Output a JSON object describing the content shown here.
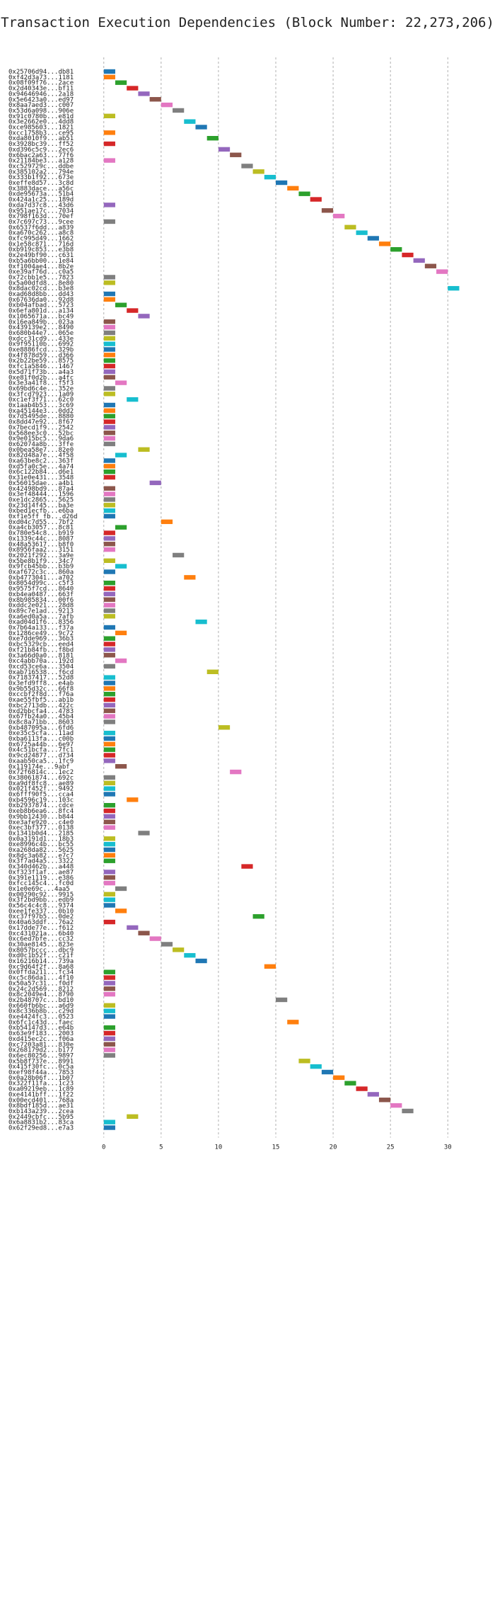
{
  "chart_data": {
    "type": "gantt",
    "title": "Transaction Execution Dependencies (Block Number: 22,273,206)",
    "xlabel": "",
    "ylabel": "",
    "xlim": [
      -3.5,
      33.5
    ],
    "xticks": [
      "0",
      "5",
      "10",
      "15",
      "20",
      "25",
      "30"
    ],
    "xtick_values": [
      0,
      5,
      10,
      15,
      20,
      25,
      30
    ],
    "grid": true,
    "palette": [
      "#1f77b4",
      "#ff7f0e",
      "#2ca02c",
      "#d62728",
      "#9467bd",
      "#8c564b",
      "#e377c2",
      "#7f7f7f",
      "#bcbd22",
      "#17becf"
    ],
    "transactions": [
      {
        "label": "0x25706d94...db81",
        "start": 0,
        "color": 0
      },
      {
        "label": "0xf42d3a73...1181",
        "start": 0,
        "color": 1
      },
      {
        "label": "0x08f09f76...2ace",
        "start": 1,
        "color": 2
      },
      {
        "label": "0x2d40343e...bf11",
        "start": 2,
        "color": 3
      },
      {
        "label": "0x94646946...2a18",
        "start": 3,
        "color": 4
      },
      {
        "label": "0x5e6423a0...ed97",
        "start": 4,
        "color": 5
      },
      {
        "label": "0x8aa7aed3...c007",
        "start": 5,
        "color": 6
      },
      {
        "label": "0x53d6a098...906e",
        "start": 6,
        "color": 7
      },
      {
        "label": "0x91c0780b...e81d",
        "start": 0,
        "color": 8
      },
      {
        "label": "0x3e2662e0...4dd8",
        "start": 7,
        "color": 9
      },
      {
        "label": "0xce985603...1821",
        "start": 8,
        "color": 0
      },
      {
        "label": "0xcc1758b3...ce95",
        "start": 0,
        "color": 1
      },
      {
        "label": "0xda8010f9...ab51",
        "start": 9,
        "color": 2
      },
      {
        "label": "0x3928bc39...ff52",
        "start": 0,
        "color": 3
      },
      {
        "label": "0xd396c5c9...2ec6",
        "start": 10,
        "color": 4
      },
      {
        "label": "0x6bac2a63...77f6",
        "start": 11,
        "color": 5
      },
      {
        "label": "0x21184be3...a128",
        "start": 0,
        "color": 6
      },
      {
        "label": "0xc529729c...ddbe",
        "start": 12,
        "color": 7
      },
      {
        "label": "0x385102a2...794e",
        "start": 13,
        "color": 8
      },
      {
        "label": "0x333b1f92...673e",
        "start": 14,
        "color": 9
      },
      {
        "label": "0xeffe8d57...3c8d",
        "start": 15,
        "color": 0
      },
      {
        "label": "0x3883dace...a56c",
        "start": 16,
        "color": 1
      },
      {
        "label": "0xde95673a...51b4",
        "start": 17,
        "color": 2
      },
      {
        "label": "0x424a1c25...189d",
        "start": 18,
        "color": 3
      },
      {
        "label": "0xda7d37c8...43d6",
        "start": 0,
        "color": 4
      },
      {
        "label": "0x951ae17c...7034",
        "start": 19,
        "color": 5
      },
      {
        "label": "0x798f163d...70ef",
        "start": 20,
        "color": 6
      },
      {
        "label": "0x7c697c73...9cee",
        "start": 0,
        "color": 7
      },
      {
        "label": "0x6537f6dd...a839",
        "start": 21,
        "color": 8
      },
      {
        "label": "0xa670c262...a8c8",
        "start": 22,
        "color": 9
      },
      {
        "label": "0xfc995d49...1662",
        "start": 23,
        "color": 0
      },
      {
        "label": "0x1e58c871...716d",
        "start": 24,
        "color": 1
      },
      {
        "label": "0xb919c853...e3b8",
        "start": 25,
        "color": 2
      },
      {
        "label": "0x2e49bf90...c631",
        "start": 26,
        "color": 3
      },
      {
        "label": "0xb5a6bb00...1e84",
        "start": 27,
        "color": 4
      },
      {
        "label": "0xf1004ae4...8b2e",
        "start": 28,
        "color": 5
      },
      {
        "label": "0xe39af76d...c0a5",
        "start": 29,
        "color": 6
      },
      {
        "label": "0x72cbb1e5...7823",
        "start": 0,
        "color": 7
      },
      {
        "label": "0x5a00dfd8...8e80",
        "start": 0,
        "color": 8
      },
      {
        "label": "0x8dac02cd...b3e8",
        "start": 30,
        "color": 9
      },
      {
        "label": "0xad68d8bb...dd43",
        "start": 0,
        "color": 0
      },
      {
        "label": "0x67636da0...92d8",
        "start": 0,
        "color": 1
      },
      {
        "label": "0xb04afbad...5723",
        "start": 1,
        "color": 2
      },
      {
        "label": "0x6efa801d...a134",
        "start": 2,
        "color": 3
      },
      {
        "label": "0x1065671a...bc49",
        "start": 3,
        "color": 4
      },
      {
        "label": "0x16ea849b...023a",
        "start": 0,
        "color": 5
      },
      {
        "label": "0x439139e2...8490",
        "start": 0,
        "color": 6
      },
      {
        "label": "0x680b44e7...065e",
        "start": 0,
        "color": 7
      },
      {
        "label": "0xdcc31cd9...433e",
        "start": 0,
        "color": 8
      },
      {
        "label": "0x9f95110b...6992",
        "start": 0,
        "color": 9
      },
      {
        "label": "0xe8886fcd...329b",
        "start": 0,
        "color": 0
      },
      {
        "label": "0x4f878d59...d366",
        "start": 0,
        "color": 1
      },
      {
        "label": "0x2b22be59...8575",
        "start": 0,
        "color": 2
      },
      {
        "label": "0xfc1a5846...1467",
        "start": 0,
        "color": 3
      },
      {
        "label": "0x5d71f73b...a4a3",
        "start": 0,
        "color": 4
      },
      {
        "label": "0xe81f0d2b...a4fc",
        "start": 0,
        "color": 5
      },
      {
        "label": "0x3e3a41f8...f5f3",
        "start": 1,
        "color": 6
      },
      {
        "label": "0x69bd6c4e...352e",
        "start": 0,
        "color": 7
      },
      {
        "label": "0x3fcd7923...1a09",
        "start": 0,
        "color": 8
      },
      {
        "label": "0xc1ef3f71...62c0",
        "start": 2,
        "color": 9
      },
      {
        "label": "0x1aab4b53...3c69",
        "start": 0,
        "color": 0
      },
      {
        "label": "0xa45144e3...0dd2",
        "start": 0,
        "color": 1
      },
      {
        "label": "0x7d5495de...8880",
        "start": 0,
        "color": 2
      },
      {
        "label": "0x8dd47e92...8f67",
        "start": 0,
        "color": 3
      },
      {
        "label": "0x7becd1f9...2542",
        "start": 0,
        "color": 4
      },
      {
        "label": "0x568ee3c0...52bc",
        "start": 0,
        "color": 5
      },
      {
        "label": "0x9e015bc5...9da6",
        "start": 0,
        "color": 6
      },
      {
        "label": "0x62074a8b...3ffe",
        "start": 0,
        "color": 7
      },
      {
        "label": "0x0bea58e7...82e0",
        "start": 3,
        "color": 8
      },
      {
        "label": "0x82d48a7e...4f58",
        "start": 1,
        "color": 9
      },
      {
        "label": "0xa63be8c2...363f",
        "start": 0,
        "color": 0
      },
      {
        "label": "0xd5fa0c5e...4a74",
        "start": 0,
        "color": 1
      },
      {
        "label": "0x6c122b84...d6e1",
        "start": 0,
        "color": 2
      },
      {
        "label": "0x31e0e431...3548",
        "start": 0,
        "color": 3
      },
      {
        "label": "0x56015dae...a4b1",
        "start": 4,
        "color": 4
      },
      {
        "label": "0x42498bd9...87a4",
        "start": 0,
        "color": 5
      },
      {
        "label": "0x3ef48444...1596",
        "start": 0,
        "color": 6
      },
      {
        "label": "0xe1dc2865...5625",
        "start": 0,
        "color": 7
      },
      {
        "label": "0x23d14f45...ba3e",
        "start": 0,
        "color": 8
      },
      {
        "label": "0xbed1ecfb...e6ba",
        "start": 0,
        "color": 9
      },
      {
        "label": "0xf1e5ff fb...d26d",
        "start": 0,
        "color": 0
      },
      {
        "label": "0xd04c7d55...7bf2",
        "start": 5,
        "color": 1
      },
      {
        "label": "0xa4cb3057...8c81",
        "start": 1,
        "color": 2
      },
      {
        "label": "0x780e54c8...b919",
        "start": 0,
        "color": 3
      },
      {
        "label": "0x1339c44c...8087",
        "start": 0,
        "color": 4
      },
      {
        "label": "0x48a53617...b8f0",
        "start": 0,
        "color": 5
      },
      {
        "label": "0x8956faa2...3151",
        "start": 0,
        "color": 6
      },
      {
        "label": "0x2021f292...3a9e",
        "start": 6,
        "color": 7
      },
      {
        "label": "0x5be8b1f9...34c7",
        "start": 0,
        "color": 8
      },
      {
        "label": "0x9fcb45bb...b3b9",
        "start": 1,
        "color": 9
      },
      {
        "label": "0xaf672c3c...860a",
        "start": 0,
        "color": 0
      },
      {
        "label": "0xb4773041...a702",
        "start": 7,
        "color": 1
      },
      {
        "label": "0x8054d99c...c5f3",
        "start": 0,
        "color": 2
      },
      {
        "label": "0x9575f7cd...8640",
        "start": 0,
        "color": 3
      },
      {
        "label": "0xb4ea0487...663f",
        "start": 0,
        "color": 4
      },
      {
        "label": "0x8b985834...00f6",
        "start": 0,
        "color": 5
      },
      {
        "label": "0xddc2e021...28d8",
        "start": 0,
        "color": 6
      },
      {
        "label": "0x89c7e1ad...9213",
        "start": 0,
        "color": 7
      },
      {
        "label": "0xa6ed0a5a...7afb",
        "start": 0,
        "color": 8
      },
      {
        "label": "0xad04d1f6...8356",
        "start": 8,
        "color": 9
      },
      {
        "label": "0x7b64a133...f37a",
        "start": 0,
        "color": 0
      },
      {
        "label": "0x1286ce49...9c72",
        "start": 1,
        "color": 1
      },
      {
        "label": "0xe7dde969...36b3",
        "start": 0,
        "color": 2
      },
      {
        "label": "0xbc5329cb...eed4",
        "start": 0,
        "color": 3
      },
      {
        "label": "0xf21b84fb...f8bd",
        "start": 0,
        "color": 4
      },
      {
        "label": "0x3a66d0a0...8181",
        "start": 0,
        "color": 5
      },
      {
        "label": "0xc4abb70a...192d",
        "start": 1,
        "color": 6
      },
      {
        "label": "0xcd53ce6a...3504",
        "start": 0,
        "color": 7
      },
      {
        "label": "0xab716538...f6cd",
        "start": 9,
        "color": 8
      },
      {
        "label": "0x71837417...52d8",
        "start": 0,
        "color": 9
      },
      {
        "label": "0x3efd9ff8...e4ab",
        "start": 0,
        "color": 0
      },
      {
        "label": "0x9b55d32c...66f8",
        "start": 0,
        "color": 1
      },
      {
        "label": "0xccbf2f8d...f76a",
        "start": 0,
        "color": 2
      },
      {
        "label": "0xae55fbf5...ab1b",
        "start": 0,
        "color": 3
      },
      {
        "label": "0xbc2713db...422c",
        "start": 0,
        "color": 4
      },
      {
        "label": "0xd2bbcfa4...4783",
        "start": 0,
        "color": 5
      },
      {
        "label": "0x67fb24a0...45b4",
        "start": 0,
        "color": 6
      },
      {
        "label": "0x8c8a71bb...8603",
        "start": 0,
        "color": 7
      },
      {
        "label": "0xb487095a...6fd6",
        "start": 10,
        "color": 8
      },
      {
        "label": "0xe35c5cfa...11ad",
        "start": 0,
        "color": 9
      },
      {
        "label": "0xba6113fa...c00b",
        "start": 0,
        "color": 0
      },
      {
        "label": "0x6725a44b...6e97",
        "start": 0,
        "color": 1
      },
      {
        "label": "0x4c51bcfa...7fc1",
        "start": 0,
        "color": 2
      },
      {
        "label": "0x9cd24877...d734",
        "start": 0,
        "color": 3
      },
      {
        "label": "0xaab50ca5...1fc9",
        "start": 0,
        "color": 4
      },
      {
        "label": "0x119174e...9abf",
        "start": 1,
        "color": 5
      },
      {
        "label": "0x72f6814c...1ec2",
        "start": 11,
        "color": 6
      },
      {
        "label": "0x38061874...692c",
        "start": 0,
        "color": 7
      },
      {
        "label": "0xa9df8fc8...ae89",
        "start": 0,
        "color": 8
      },
      {
        "label": "0x021f452f...9492",
        "start": 0,
        "color": 9
      },
      {
        "label": "0x6fff90f5...cca4",
        "start": 0,
        "color": 0
      },
      {
        "label": "0xb4596c19...103c",
        "start": 2,
        "color": 1
      },
      {
        "label": "0xb2937874...cdce",
        "start": 0,
        "color": 2
      },
      {
        "label": "0xeb8b6ea6...8fc4",
        "start": 0,
        "color": 3
      },
      {
        "label": "0x9bb12430...b844",
        "start": 0,
        "color": 4
      },
      {
        "label": "0xe3afe920...c4e0",
        "start": 0,
        "color": 5
      },
      {
        "label": "0xec3bf377...0138",
        "start": 0,
        "color": 6
      },
      {
        "label": "0x1341b0d4...2185",
        "start": 3,
        "color": 7
      },
      {
        "label": "0x0a3191d1...18b3",
        "start": 0,
        "color": 8
      },
      {
        "label": "0xe8996c4b...bc55",
        "start": 0,
        "color": 9
      },
      {
        "label": "0xa268da82...5625",
        "start": 0,
        "color": 0
      },
      {
        "label": "0x8dc3a682...e7c7",
        "start": 0,
        "color": 1
      },
      {
        "label": "0x3f7ad4a5...3322",
        "start": 0,
        "color": 2
      },
      {
        "label": "0x340d462b...a448",
        "start": 12,
        "color": 3
      },
      {
        "label": "0xf323f1af...ae87",
        "start": 0,
        "color": 4
      },
      {
        "label": "0x391e1119...e386",
        "start": 0,
        "color": 5
      },
      {
        "label": "0xfcc145c4...fc0d",
        "start": 0,
        "color": 6
      },
      {
        "label": "0x1e0e69c...4aa5",
        "start": 1,
        "color": 7
      },
      {
        "label": "0x00290c92...9915",
        "start": 0,
        "color": 8
      },
      {
        "label": "0x3f2bd9bb...edb9",
        "start": 0,
        "color": 9
      },
      {
        "label": "0x56c4c4c8...9374",
        "start": 0,
        "color": 0
      },
      {
        "label": "0xee1fe337...0b10",
        "start": 1,
        "color": 1
      },
      {
        "label": "0xc37f97b5...0de2",
        "start": 13,
        "color": 2
      },
      {
        "label": "0x40a63ddf...76a2",
        "start": 0,
        "color": 3
      },
      {
        "label": "0x17dde77e...f612",
        "start": 2,
        "color": 4
      },
      {
        "label": "0xc431021a...6b40",
        "start": 3,
        "color": 5
      },
      {
        "label": "0xc6ed7bfe...cc32",
        "start": 4,
        "color": 6
      },
      {
        "label": "0x30ae8145...823e",
        "start": 5,
        "color": 7
      },
      {
        "label": "0x8057bccc...dbc9",
        "start": 6,
        "color": 8
      },
      {
        "label": "0xd0c1b52f...c21f",
        "start": 7,
        "color": 9
      },
      {
        "label": "0x16216b14...739a",
        "start": 8,
        "color": 0
      },
      {
        "label": "0xc9d64f2f...8a68",
        "start": 14,
        "color": 1
      },
      {
        "label": "0x0ffda211...fc34",
        "start": 0,
        "color": 2
      },
      {
        "label": "0xc5c86da1...4f10",
        "start": 0,
        "color": 3
      },
      {
        "label": "0x50a57c31...f0df",
        "start": 0,
        "color": 4
      },
      {
        "label": "0x24c2d569...8212",
        "start": 0,
        "color": 5
      },
      {
        "label": "0x8c2049e4...8790",
        "start": 0,
        "color": 6
      },
      {
        "label": "0x2b48707c...bd10",
        "start": 15,
        "color": 7
      },
      {
        "label": "0x660fb6bc...a6d9",
        "start": 0,
        "color": 8
      },
      {
        "label": "0x8c336b8b...c29d",
        "start": 0,
        "color": 9
      },
      {
        "label": "0xe4424fc3...0523",
        "start": 0,
        "color": 0
      },
      {
        "label": "0x6fc1c43d...faec",
        "start": 16,
        "color": 1
      },
      {
        "label": "0xb54147d3...e64b",
        "start": 0,
        "color": 2
      },
      {
        "label": "0x63e9f183...2003",
        "start": 0,
        "color": 3
      },
      {
        "label": "0xd415ec2c...f06a",
        "start": 0,
        "color": 4
      },
      {
        "label": "0xc7203a81...830e",
        "start": 0,
        "color": 5
      },
      {
        "label": "0x268179d2...b177",
        "start": 0,
        "color": 6
      },
      {
        "label": "0x6ec80256...9897",
        "start": 0,
        "color": 7
      },
      {
        "label": "0x5b8f737e...8991",
        "start": 17,
        "color": 8
      },
      {
        "label": "0x415f30fc...0c5a",
        "start": 18,
        "color": 9
      },
      {
        "label": "0xef98f44a...7853",
        "start": 19,
        "color": 0
      },
      {
        "label": "0x0a28b06f...1b07",
        "start": 20,
        "color": 1
      },
      {
        "label": "0x322f11fa...1c23",
        "start": 21,
        "color": 2
      },
      {
        "label": "0xa09219eb...1c89",
        "start": 22,
        "color": 3
      },
      {
        "label": "0xe4141bff...1f22",
        "start": 23,
        "color": 4
      },
      {
        "label": "0x00ecd401...768a",
        "start": 24,
        "color": 5
      },
      {
        "label": "0x8bdf185d...ae31",
        "start": 25,
        "color": 6
      },
      {
        "label": "0xb143a239...2cea",
        "start": 26,
        "color": 7
      },
      {
        "label": "0x2449cbfc...5b95",
        "start": 2,
        "color": 8
      },
      {
        "label": "0x6a8831b2...83ca",
        "start": 0,
        "color": 9
      },
      {
        "label": "0x62f29ed8...e7a3",
        "start": 0,
        "color": 0
      }
    ]
  }
}
